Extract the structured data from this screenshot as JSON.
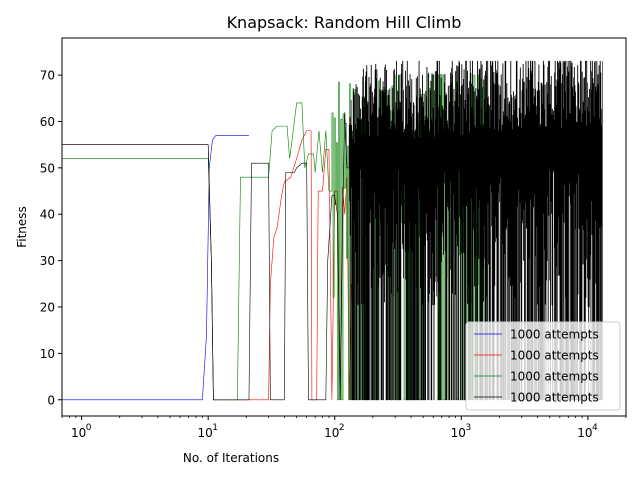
{
  "chart_data": {
    "type": "line",
    "title": "Knapsack: Random Hill Climb",
    "xlabel": "No. of Iterations",
    "ylabel": "Fitness",
    "xscale": "log",
    "xlim": [
      0.7,
      20000
    ],
    "ylim": [
      -3.5,
      78
    ],
    "xticks": [
      {
        "value": 1,
        "base": "10",
        "exp": "0"
      },
      {
        "value": 10,
        "base": "10",
        "exp": "1"
      },
      {
        "value": 100,
        "base": "10",
        "exp": "2"
      },
      {
        "value": 1000,
        "base": "10",
        "exp": "3"
      },
      {
        "value": 10000,
        "base": "10",
        "exp": "4"
      }
    ],
    "yticks": [
      0,
      10,
      20,
      30,
      40,
      50,
      60,
      70
    ],
    "legend_position": "lower-right",
    "series": [
      {
        "name": "1000 attempts",
        "color": "#0000ff",
        "mode": "steps",
        "points": [
          [
            0.5,
            0
          ],
          [
            9,
            0
          ],
          [
            9.7,
            14
          ],
          [
            10.2,
            50
          ],
          [
            10.8,
            56
          ],
          [
            11.5,
            57
          ],
          [
            21,
            57
          ]
        ]
      },
      {
        "name": "1000 attempts",
        "color": "#ff0000",
        "mode": "steps",
        "points": [
          [
            0.5,
            55
          ],
          [
            10,
            55
          ],
          [
            10.6,
            30
          ],
          [
            11,
            0
          ],
          [
            30,
            0
          ],
          [
            31,
            25
          ],
          [
            33,
            35
          ],
          [
            35,
            37
          ],
          [
            38,
            44
          ],
          [
            40,
            47
          ],
          [
            45,
            48
          ],
          [
            50,
            52
          ],
          [
            55,
            56
          ],
          [
            60,
            58
          ],
          [
            65,
            58
          ],
          [
            66,
            0
          ],
          [
            72,
            0
          ],
          [
            74,
            45
          ],
          [
            80,
            45
          ],
          [
            85,
            54
          ],
          [
            90,
            54
          ],
          [
            95,
            0
          ],
          [
            100,
            45
          ],
          [
            105,
            45
          ],
          [
            110,
            0
          ],
          [
            115,
            46
          ],
          [
            120,
            40
          ],
          [
            125,
            48
          ],
          [
            130,
            0
          ],
          [
            135,
            25
          ]
        ]
      },
      {
        "name": "1000 attempts",
        "color": "#008000",
        "mode": "noise",
        "seed": 7,
        "points": [
          [
            0.5,
            52
          ],
          [
            10,
            52
          ],
          [
            10.6,
            30
          ],
          [
            11,
            0
          ],
          [
            17,
            0
          ],
          [
            18,
            48
          ],
          [
            25,
            48
          ],
          [
            30,
            48
          ],
          [
            32,
            58
          ],
          [
            35,
            59
          ],
          [
            42,
            59
          ],
          [
            44,
            52
          ],
          [
            46,
            56
          ],
          [
            50,
            64
          ],
          [
            55,
            64
          ],
          [
            58,
            50
          ],
          [
            62,
            53
          ],
          [
            68,
            53
          ],
          [
            70,
            49
          ],
          [
            75,
            58
          ],
          [
            80,
            49
          ],
          [
            85,
            58
          ],
          [
            90,
            45
          ]
        ],
        "noise_start": 95,
        "noise_end": 1600,
        "noise_hi": 70,
        "noise_lo": 0,
        "noise_density": 140
      },
      {
        "name": "1000 attempts",
        "color": "#000000",
        "mode": "noise",
        "seed": 3,
        "points": [
          [
            0.5,
            55
          ],
          [
            10,
            55
          ],
          [
            10.6,
            30
          ],
          [
            11,
            0
          ],
          [
            21,
            0
          ],
          [
            22,
            51
          ],
          [
            30,
            51
          ],
          [
            31,
            0
          ],
          [
            40,
            0
          ],
          [
            41,
            49
          ],
          [
            48,
            49
          ],
          [
            50,
            50
          ],
          [
            55,
            51
          ],
          [
            60,
            51
          ],
          [
            62,
            0
          ],
          [
            75,
            0
          ],
          [
            80,
            0
          ],
          [
            85,
            0
          ],
          [
            88,
            30
          ],
          [
            95,
            44
          ],
          [
            100,
            44
          ],
          [
            105,
            40
          ],
          [
            110,
            0
          ],
          [
            115,
            35
          ],
          [
            120,
            62
          ],
          [
            125,
            50
          ]
        ],
        "noise_start": 130,
        "noise_end": 13000,
        "noise_hi": 73,
        "noise_lo": 0,
        "noise_density": 900
      }
    ]
  }
}
